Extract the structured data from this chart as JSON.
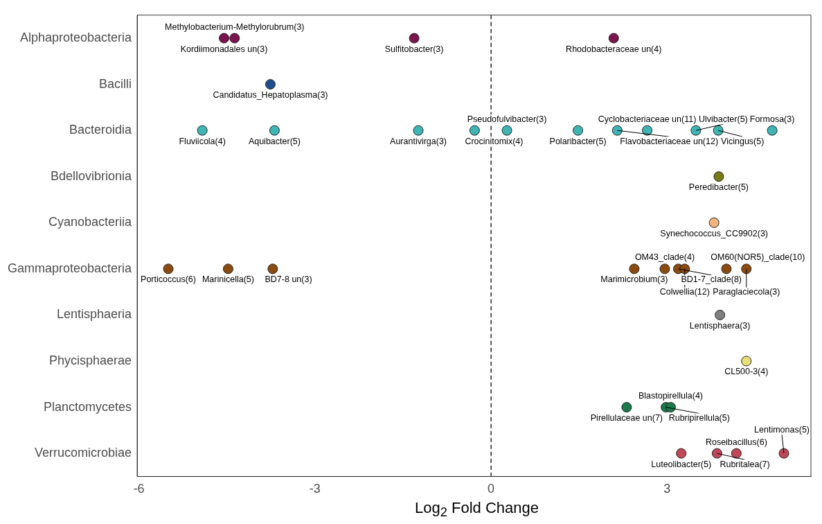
{
  "chart_data": {
    "type": "scatter",
    "orientation": "horizontal",
    "xlabel": "Log$_{2}$ Fold Change",
    "categories": [
      "Alphaproteobacteria",
      "Bacilli",
      "Bacteroidia",
      "Bdellovibrionia",
      "Cyanobacteriia",
      "Gammaproteobacteria",
      "Lentisphaeria",
      "Phycisphaerae",
      "Planctomycetes",
      "Verrucomicrobiae"
    ],
    "xlim": [
      -6.03,
      5.45
    ],
    "xticks": [
      -6,
      -3,
      0,
      3
    ],
    "grid": false,
    "legend": false,
    "marker": "circle",
    "ref_lines": [
      {
        "axis": "x",
        "value": 0,
        "line_style": "dashed",
        "color": "#000000"
      }
    ],
    "series": [
      {
        "color": "#7b1450",
        "x": [
          "Alphaproteobacteria",
          "Alphaproteobacteria",
          "Alphaproteobacteria",
          "Alphaproteobacteria"
        ],
        "values": [
          -4.55,
          -4.37,
          -1.31,
          2.09
        ]
      },
      {
        "color": "#1f4e8c",
        "x": [
          "Bacilli"
        ],
        "values": [
          -3.76
        ]
      },
      {
        "color": "#3fb5b5",
        "x": [
          "Bacteroidia",
          "Bacteroidia",
          "Bacteroidia",
          "Bacteroidia",
          "Bacteroidia",
          "Bacteroidia",
          "Bacteroidia",
          "Bacteroidia",
          "Bacteroidia",
          "Bacteroidia",
          "Bacteroidia"
        ],
        "values": [
          -4.92,
          -3.69,
          -1.24,
          -0.28,
          0.27,
          1.48,
          2.15,
          2.66,
          3.49,
          3.87,
          4.79
        ]
      },
      {
        "color": "#7a7a10",
        "x": [
          "Bdellovibrionia"
        ],
        "values": [
          3.88
        ]
      },
      {
        "color": "#f0b47c",
        "x": [
          "Cyanobacteriia"
        ],
        "values": [
          3.8
        ]
      },
      {
        "color": "#8b4a10",
        "x": [
          "Gammaproteobacteria",
          "Gammaproteobacteria",
          "Gammaproteobacteria",
          "Gammaproteobacteria",
          "Gammaproteobacteria",
          "Gammaproteobacteria",
          "Gammaproteobacteria",
          "Gammaproteobacteria",
          "Gammaproteobacteria"
        ],
        "values": [
          -5.5,
          -4.48,
          -3.72,
          2.44,
          2.96,
          3.19,
          3.3,
          4.01,
          4.35
        ]
      },
      {
        "color": "#7f7f7f",
        "x": [
          "Lentisphaeria"
        ],
        "values": [
          3.9
        ]
      },
      {
        "color": "#e6e07a",
        "x": [
          "Phycisphaerae"
        ],
        "values": [
          4.35
        ]
      },
      {
        "color": "#1a7a4a",
        "x": [
          "Planctomycetes",
          "Planctomycetes",
          "Planctomycetes"
        ],
        "values": [
          2.31,
          2.98,
          3.06
        ]
      },
      {
        "color": "#c04858",
        "x": [
          "Verrucomicrobiae",
          "Verrucomicrobiae",
          "Verrucomicrobiae",
          "Verrucomicrobiae"
        ],
        "values": [
          3.24,
          3.85,
          4.18,
          4.99
        ]
      }
    ],
    "annotations": [
      {
        "text": "Kordiimonadales un(3)",
        "x": -4.55,
        "y": "Alphaproteobacteria"
      },
      {
        "text": "Methylobacterium-Methylorubrum(3)",
        "x": -4.37,
        "y": "Alphaproteobacteria"
      },
      {
        "text": "Sulfitobacter(3)",
        "x": -1.31,
        "y": "Alphaproteobacteria"
      },
      {
        "text": "Rhodobacteraceae un(4)",
        "x": 2.09,
        "y": "Alphaproteobacteria"
      },
      {
        "text": "Candidatus_Hepatoplasma(3)",
        "x": -3.76,
        "y": "Bacilli"
      },
      {
        "text": "Fluviicola(4)",
        "x": -4.92,
        "y": "Bacteroidia"
      },
      {
        "text": "Aquibacter(5)",
        "x": -3.69,
        "y": "Bacteroidia"
      },
      {
        "text": "Aurantivirga(3)",
        "x": -1.24,
        "y": "Bacteroidia"
      },
      {
        "text": "Crocinitomix(4)",
        "x": -0.28,
        "y": "Bacteroidia"
      },
      {
        "text": "Pseudofulvibacter(3)",
        "x": 0.27,
        "y": "Bacteroidia"
      },
      {
        "text": "Polaribacter(5)",
        "x": 1.48,
        "y": "Bacteroidia"
      },
      {
        "text": "Flavobacteriaceae un(12)",
        "x": 2.15,
        "y": "Bacteroidia"
      },
      {
        "text": "Cyclobacteriaceae un(11)",
        "x": 2.66,
        "y": "Bacteroidia"
      },
      {
        "text": "Ulvibacter(5)",
        "x": 3.49,
        "y": "Bacteroidia"
      },
      {
        "text": "Vicingus(5)",
        "x": 3.87,
        "y": "Bacteroidia"
      },
      {
        "text": "Formosa(3)",
        "x": 4.79,
        "y": "Bacteroidia"
      },
      {
        "text": "Peredibacter(5)",
        "x": 3.88,
        "y": "Bdellovibrionia"
      },
      {
        "text": "Synechococcus_CC9902(3)",
        "x": 3.8,
        "y": "Cyanobacteriia"
      },
      {
        "text": "Porticoccus(6)",
        "x": -5.5,
        "y": "Gammaproteobacteria"
      },
      {
        "text": "Marinicella(5)",
        "x": -4.48,
        "y": "Gammaproteobacteria"
      },
      {
        "text": "BD7-8 un(3)",
        "x": -3.72,
        "y": "Gammaproteobacteria"
      },
      {
        "text": "Marimicrobium(3)",
        "x": 2.44,
        "y": "Gammaproteobacteria"
      },
      {
        "text": "OM43_clade(4)",
        "x": 2.96,
        "y": "Gammaproteobacteria"
      },
      {
        "text": "BD1-7_clade(8)",
        "x": 3.19,
        "y": "Gammaproteobacteria"
      },
      {
        "text": "Colwellia(12)",
        "x": 3.3,
        "y": "Gammaproteobacteria"
      },
      {
        "text": "OM60(NOR5)_clade(10)",
        "x": 4.01,
        "y": "Gammaproteobacteria"
      },
      {
        "text": "Paraglaciecola(3)",
        "x": 4.35,
        "y": "Gammaproteobacteria"
      },
      {
        "text": "Lentisphaera(3)",
        "x": 3.9,
        "y": "Lentisphaeria"
      },
      {
        "text": "CL500-3(4)",
        "x": 4.35,
        "y": "Phycisphaerae"
      },
      {
        "text": "Pirellulaceae un(7)",
        "x": 2.31,
        "y": "Planctomycetes"
      },
      {
        "text": "Rubripirellula(5)",
        "x": 2.98,
        "y": "Planctomycetes"
      },
      {
        "text": "Blastopirellula(4)",
        "x": 3.06,
        "y": "Planctomycetes"
      },
      {
        "text": "Luteolibacter(5)",
        "x": 3.24,
        "y": "Verrucomicrobiae"
      },
      {
        "text": "Rubritalea(7)",
        "x": 3.85,
        "y": "Verrucomicrobiae"
      },
      {
        "text": "Roseibacillus(6)",
        "x": 4.18,
        "y": "Verrucomicrobiae"
      },
      {
        "text": "Lentimonas(5)",
        "x": 4.99,
        "y": "Verrucomicrobiae"
      }
    ]
  }
}
